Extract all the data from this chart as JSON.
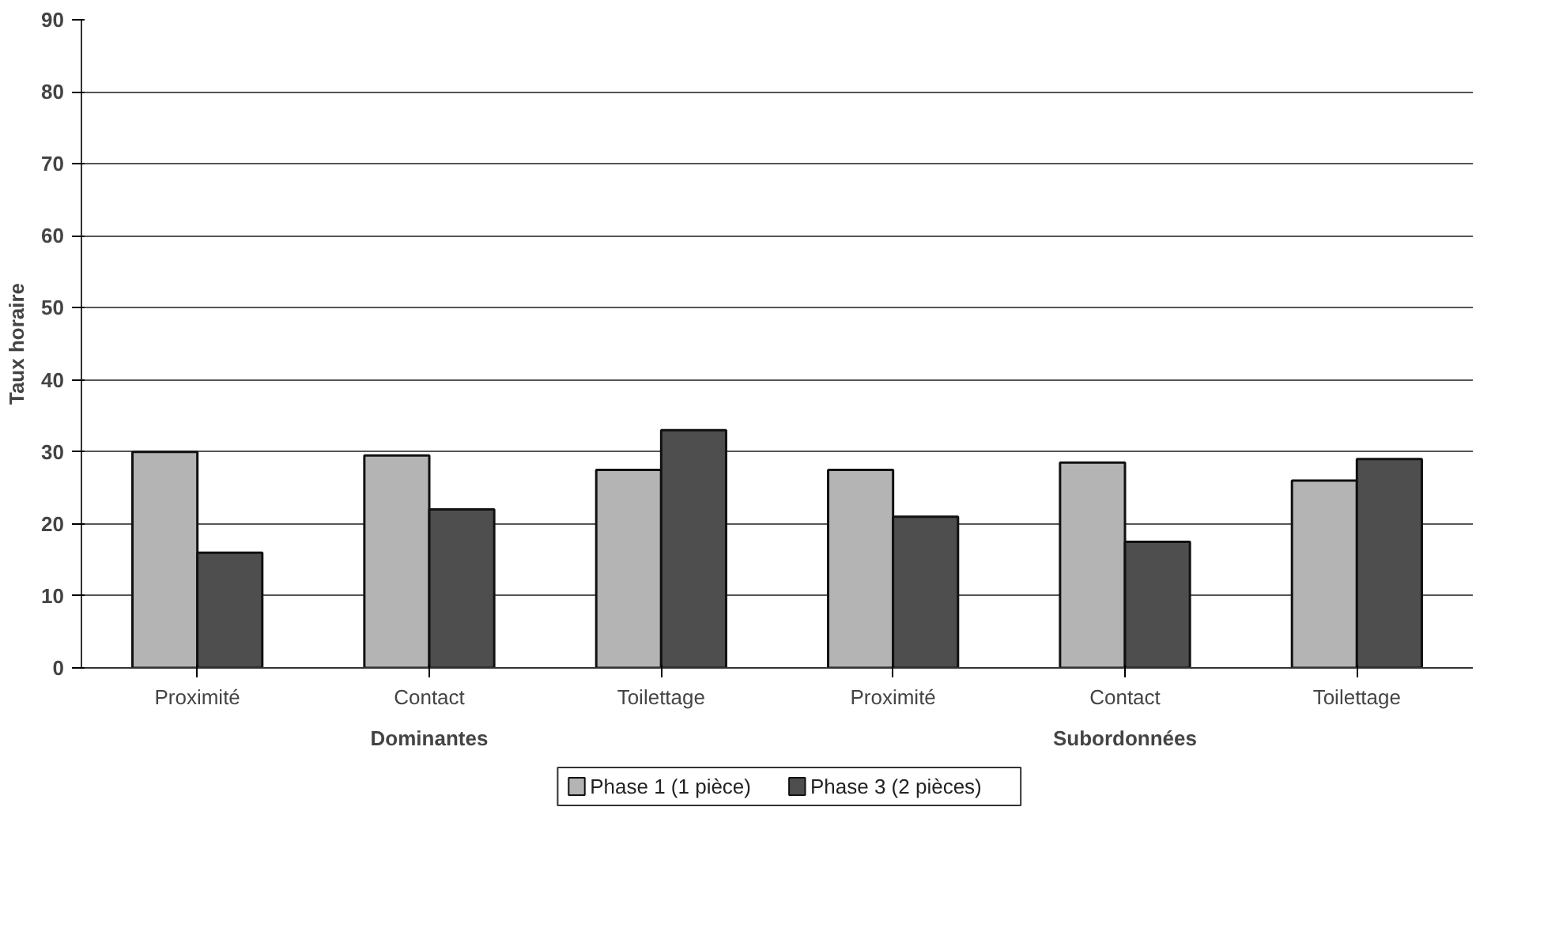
{
  "chart_data": {
    "type": "bar",
    "ylabel": "Taux horaire",
    "categories": [
      "Proximité",
      "Contact",
      "Toilettage",
      "Proximité",
      "Contact",
      "Toilettage"
    ],
    "series": [
      {
        "name": "Phase 1 (1 pièce)",
        "color": "#b4b4b4",
        "values": [
          30,
          29.5,
          27.5,
          27.5,
          28.5,
          26
        ]
      },
      {
        "name": "Phase 3 (2 pièces)",
        "color": "#4e4e4e",
        "values": [
          16,
          22,
          33,
          21,
          17.5,
          29
        ]
      }
    ],
    "annotations": [
      "Dominantes",
      "Subordonnées"
    ],
    "ylim": [
      0,
      90
    ],
    "yticks": [
      0,
      10,
      20,
      30,
      40,
      50,
      60,
      70,
      80,
      90
    ],
    "grid": "y",
    "legend": "bottom"
  }
}
